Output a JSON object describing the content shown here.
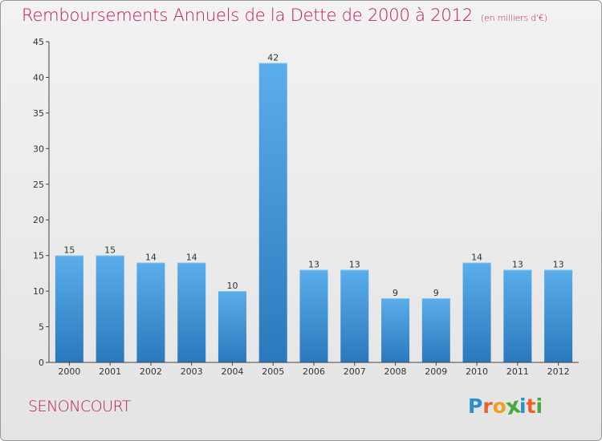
{
  "chart_data": {
    "type": "bar",
    "title": "Remboursements Annuels de la Dette de 2000 à 2012",
    "subtitle": "(en milliers d'€)",
    "categories": [
      "2000",
      "2001",
      "2002",
      "2003",
      "2004",
      "2005",
      "2006",
      "2007",
      "2008",
      "2009",
      "2010",
      "2011",
      "2012"
    ],
    "values": [
      15,
      15,
      14,
      14,
      10,
      42,
      13,
      13,
      9,
      9,
      14,
      13,
      13
    ],
    "ylim": [
      0,
      45
    ],
    "yticks": [
      0,
      5,
      10,
      15,
      20,
      25,
      30,
      35,
      40,
      45
    ],
    "grid": false,
    "legend": "none",
    "bar_color": "#3d8fd6"
  },
  "commune": "SENONCOURT",
  "logo": {
    "text": "Proxiti",
    "letter_colors": [
      "#2a8fd0",
      "#e8622a",
      "#f0a020",
      "#49a842",
      "#2a8fd0",
      "#e8622a",
      "#49a842"
    ]
  },
  "colors": {
    "title": "#c0185b",
    "background": "#eaeaea"
  }
}
